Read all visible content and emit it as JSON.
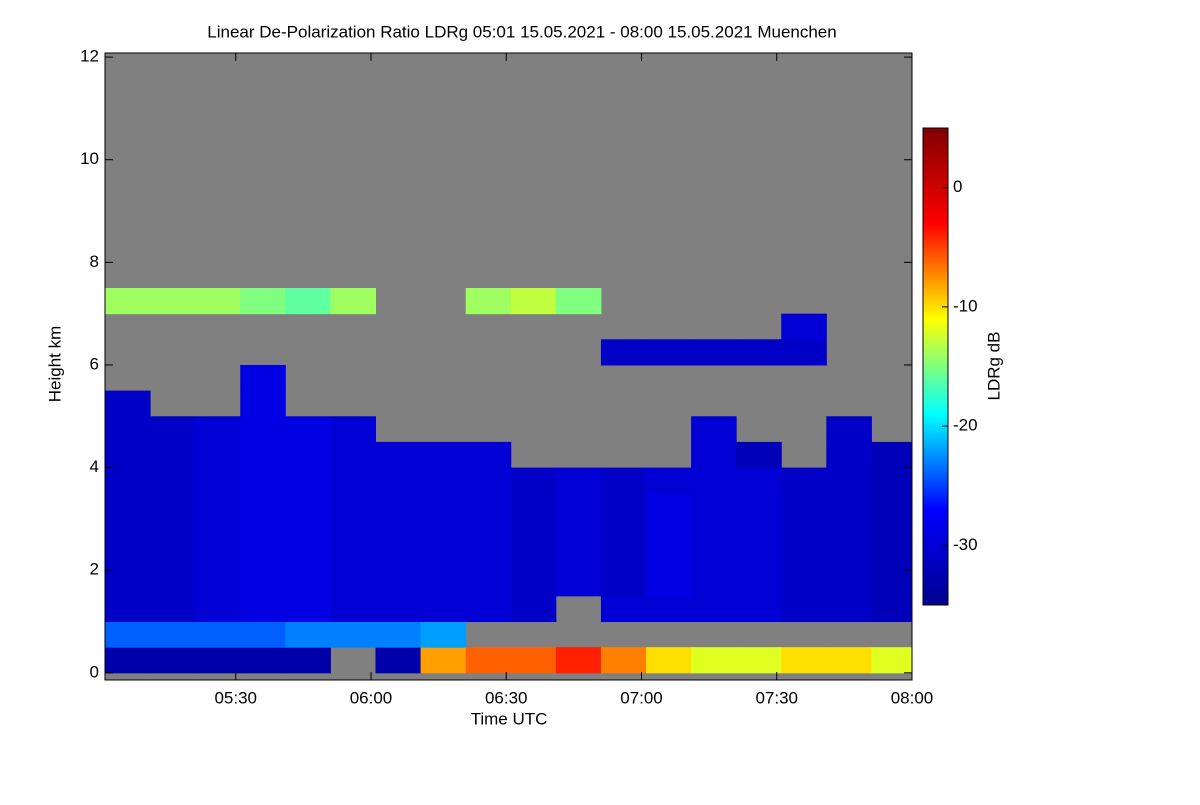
{
  "chart_data": {
    "type": "heatmap",
    "title": "Linear De-Polarization Ratio LDRg   05:01 15.05.2021 - 08:00 15.05.2021 Muenchen",
    "x_label": "Time UTC",
    "y_label": "Height km",
    "colorbar_label": "LDRg dB",
    "xlim": [
      301,
      480
    ],
    "xticks": [
      {
        "value": 330,
        "label": "05:30"
      },
      {
        "value": 360,
        "label": "06:00"
      },
      {
        "value": 390,
        "label": "06:30"
      },
      {
        "value": 420,
        "label": "07:00"
      },
      {
        "value": 450,
        "label": "07:30"
      },
      {
        "value": 480,
        "label": "08:00"
      }
    ],
    "ylim": [
      -0.14,
      12.08
    ],
    "yticks": [
      0,
      2,
      4,
      6,
      8,
      10,
      12
    ],
    "x_bins": [
      301,
      311,
      321,
      331,
      341,
      351,
      361,
      371,
      381,
      391,
      401,
      411,
      421,
      431,
      441,
      451,
      461,
      471,
      480
    ],
    "y_bins": [
      0,
      0.5,
      1,
      1.5,
      2,
      2.5,
      3,
      3.5,
      4,
      4.5,
      5,
      5.5,
      6,
      6.5,
      7,
      7.5
    ],
    "z": [
      [
        -33,
        -33,
        -33,
        -33,
        -33,
        null,
        -33,
        -8,
        -6,
        -6,
        -4,
        -7,
        -10,
        -12,
        -12,
        -10,
        -10,
        -12
      ],
      [
        -24,
        -24,
        -24,
        -24,
        -23,
        -23,
        -23,
        -22,
        null,
        null,
        null,
        null,
        null,
        null,
        null,
        null,
        null,
        null
      ],
      [
        -31,
        -31,
        -30,
        -29,
        -29,
        -30,
        -30,
        -30,
        -30,
        -31,
        null,
        -30,
        -30,
        -30,
        -30,
        -31,
        -31,
        -32
      ],
      [
        -31,
        -31,
        -30,
        -29,
        -29,
        -30,
        -30,
        -30,
        -30,
        -31,
        -30,
        -31,
        -29,
        -30,
        -30,
        -31,
        -31,
        -32
      ],
      [
        -31,
        -31,
        -30,
        -29,
        -29,
        -30,
        -30,
        -30,
        -30,
        -31,
        -30,
        -31,
        -29,
        -30,
        -30,
        -31,
        -31,
        -32
      ],
      [
        -31,
        -31,
        -30,
        -29,
        -29,
        -30,
        -30,
        -30,
        -30,
        -31,
        -30,
        -31,
        -29,
        -30,
        -30,
        -31,
        -31,
        -32
      ],
      [
        -31,
        -31,
        -30,
        -29,
        -29,
        -30,
        -30,
        -30,
        -30,
        -31,
        -30,
        -31,
        -29,
        -30,
        -30,
        -31,
        -31,
        -32
      ],
      [
        -31,
        -31,
        -30,
        -29,
        -29,
        -30,
        -30,
        -30,
        -30,
        -31,
        -30,
        -31,
        -30,
        -30,
        -30,
        -31,
        -31,
        -32
      ],
      [
        -31,
        -31,
        -30,
        -29,
        -29,
        -30,
        -30,
        -30,
        -30,
        null,
        null,
        null,
        null,
        -30,
        -32,
        null,
        -31,
        -32
      ],
      [
        -31,
        -31,
        -30,
        -29,
        -29,
        -30,
        null,
        null,
        null,
        null,
        null,
        null,
        null,
        -30,
        null,
        null,
        -31,
        null
      ],
      [
        -31,
        null,
        null,
        -29,
        null,
        null,
        null,
        null,
        null,
        null,
        null,
        null,
        null,
        null,
        null,
        null,
        null,
        null
      ],
      [
        null,
        null,
        null,
        -29,
        null,
        null,
        null,
        null,
        null,
        null,
        null,
        null,
        null,
        null,
        null,
        null,
        null,
        null
      ],
      [
        null,
        null,
        null,
        null,
        null,
        null,
        null,
        null,
        null,
        null,
        null,
        -31,
        -31,
        -31,
        -31,
        -31,
        null,
        null
      ],
      [
        null,
        null,
        null,
        null,
        null,
        null,
        null,
        null,
        null,
        null,
        null,
        null,
        null,
        null,
        null,
        -30,
        null,
        null
      ],
      [
        -14,
        -14,
        -14,
        -15,
        -16,
        -14,
        null,
        null,
        -14,
        -13,
        -15,
        null,
        null,
        null,
        null,
        null,
        null,
        null
      ]
    ],
    "clim": [
      -35,
      5
    ],
    "colorbar_ticks": [
      0,
      -10,
      -20,
      -30
    ],
    "colormap": [
      "#00008f",
      "#0000ff",
      "#00ffff",
      "#ffff00",
      "#ff0000",
      "#800000"
    ],
    "missing_color": "#808080"
  }
}
